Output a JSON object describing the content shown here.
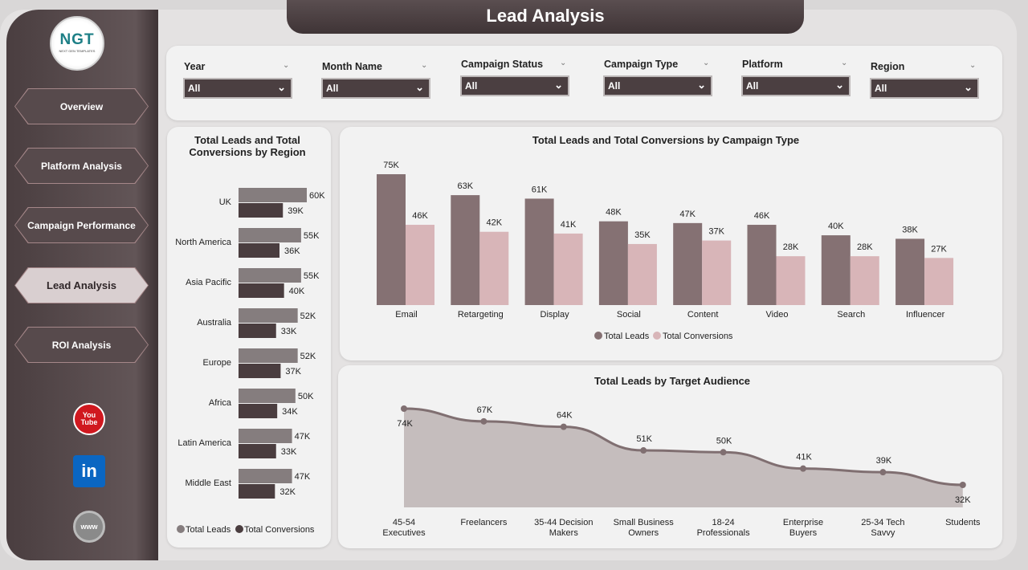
{
  "title": "Lead Analysis",
  "logo": {
    "text": "NGT",
    "subtitle": "NEXT GEN TEMPLATES"
  },
  "nav": [
    {
      "label": "Overview"
    },
    {
      "label": "Platform Analysis"
    },
    {
      "label": "Campaign Performance"
    },
    {
      "label": "Lead Analysis",
      "active": true
    },
    {
      "label": "ROI Analysis"
    }
  ],
  "social": [
    {
      "icon": "youtube-icon",
      "label": "You Tube"
    },
    {
      "icon": "linkedin-icon",
      "label": "in"
    },
    {
      "icon": "globe-icon",
      "label": "www"
    }
  ],
  "filters": [
    {
      "label": "Year",
      "value": "All"
    },
    {
      "label": "Month Name",
      "value": "All"
    },
    {
      "label": "Campaign Status",
      "value": "All"
    },
    {
      "label": "Campaign Type",
      "value": "All"
    },
    {
      "label": "Platform",
      "value": "All"
    },
    {
      "label": "Region",
      "value": "All"
    }
  ],
  "colors": {
    "leads_region": "#857d7e",
    "conv_region": "#4a3d3f",
    "leads": "#857173",
    "conv": "#d8b5b8",
    "area": "#c5bdbd",
    "line": "#806f71"
  },
  "chart_data": [
    {
      "type": "bar",
      "orientation": "horizontal",
      "title": "Total Leads and Total Conversions by Region",
      "categories": [
        "UK",
        "North America",
        "Asia Pacific",
        "Australia",
        "Europe",
        "Africa",
        "Latin America",
        "Middle East"
      ],
      "series": [
        {
          "name": "Total Leads",
          "values": [
            60,
            55,
            55,
            52,
            52,
            50,
            47,
            47
          ]
        },
        {
          "name": "Total Conversions",
          "values": [
            39,
            36,
            40,
            33,
            37,
            34,
            33,
            32
          ]
        }
      ],
      "labels": [
        [
          "60K",
          "55K",
          "55K",
          "52K",
          "52K",
          "50K",
          "47K",
          "47K"
        ],
        [
          "39K",
          "36K",
          "40K",
          "33K",
          "37K",
          "34K",
          "33K",
          "32K"
        ]
      ],
      "unit": "K",
      "legend": "bottom"
    },
    {
      "type": "bar",
      "title": "Total Leads and Total Conversions by Campaign Type",
      "categories": [
        "Email",
        "Retargeting",
        "Display",
        "Social",
        "Content",
        "Video",
        "Search",
        "Influencer"
      ],
      "series": [
        {
          "name": "Total Leads",
          "values": [
            75,
            63,
            61,
            48,
            47,
            46,
            40,
            38
          ]
        },
        {
          "name": "Total Conversions",
          "values": [
            46,
            42,
            41,
            35,
            37,
            28,
            28,
            27
          ]
        }
      ],
      "labels": [
        [
          "75K",
          "63K",
          "61K",
          "48K",
          "47K",
          "46K",
          "40K",
          "38K"
        ],
        [
          "46K",
          "42K",
          "41K",
          "35K",
          "37K",
          "28K",
          "28K",
          "27K"
        ]
      ],
      "unit": "K",
      "legend": "bottom"
    },
    {
      "type": "area",
      "title": "Total Leads by Target Audience",
      "categories": [
        "45-54 Executives",
        "Freelancers",
        "35-44 Decision Makers",
        "Small Business Owners",
        "18-24 Professionals",
        "Enterprise Buyers",
        "25-34 Tech Savvy",
        "Students"
      ],
      "category_lines": [
        [
          "45-54",
          "Executives"
        ],
        [
          "Freelancers"
        ],
        [
          "35-44 Decision",
          "Makers"
        ],
        [
          "Small Business",
          "Owners"
        ],
        [
          "18-24",
          "Professionals"
        ],
        [
          "Enterprise",
          "Buyers"
        ],
        [
          "25-34 Tech",
          "Savvy"
        ],
        [
          "Students"
        ]
      ],
      "values": [
        74,
        67,
        64,
        51,
        50,
        41,
        39,
        32
      ],
      "labels": [
        "74K",
        "67K",
        "64K",
        "51K",
        "50K",
        "41K",
        "39K",
        "32K"
      ],
      "unit": "K"
    }
  ]
}
